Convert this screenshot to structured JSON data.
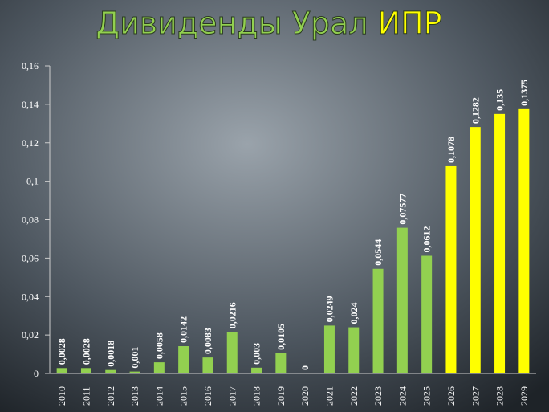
{
  "chart_data": {
    "type": "bar",
    "title": "Дивиденды Урал",
    "title_highlight": "ИПР",
    "categories": [
      "2010",
      "2011",
      "2012",
      "2013",
      "2014",
      "2015",
      "2016",
      "2017",
      "2018",
      "2019",
      "2020",
      "2021",
      "2022",
      "2023",
      "2024",
      "2025",
      "2026",
      "2027",
      "2028",
      "2029"
    ],
    "values": [
      0.0028,
      0.0028,
      0.0018,
      0.001,
      0.0058,
      0.0142,
      0.0083,
      0.0216,
      0.003,
      0.0105,
      0,
      0.0249,
      0.024,
      0.0544,
      0.07577,
      0.0612,
      0.1078,
      0.1282,
      0.135,
      0.1375
    ],
    "value_labels": [
      "0,0028",
      "0,0028",
      "0,0018",
      "0,001",
      "0,0058",
      "0,0142",
      "0,0083",
      "0,0216",
      "0,003",
      "0,0105",
      "0",
      "0,0249",
      "0,024",
      "0,0544",
      "0,07577",
      "0,0612",
      "0,1078",
      "0,1282",
      "0,135",
      "0,1375"
    ],
    "bar_colors": [
      "#92d050",
      "#92d050",
      "#92d050",
      "#92d050",
      "#92d050",
      "#92d050",
      "#92d050",
      "#92d050",
      "#92d050",
      "#92d050",
      "#92d050",
      "#92d050",
      "#92d050",
      "#92d050",
      "#92d050",
      "#92d050",
      "#ffff00",
      "#ffff00",
      "#ffff00",
      "#ffff00"
    ],
    "ylim": [
      0,
      0.16
    ],
    "yticks": [
      0,
      {
        "value": 0.02,
        "label": "0,02"
      },
      {
        "value": 0.04,
        "label": "0,04"
      },
      {
        "value": 0.06,
        "label": "0,06"
      },
      {
        "value": 0.08,
        "label": "0,08"
      },
      {
        "value": 0.1,
        "label": "0,1"
      },
      {
        "value": 0.12,
        "label": "0,12"
      },
      {
        "value": 0.14,
        "label": "0,14"
      },
      {
        "value": 0.16,
        "label": "0,16"
      }
    ],
    "title_color": "#92d050",
    "title_highlight_color": "#ffff00"
  }
}
